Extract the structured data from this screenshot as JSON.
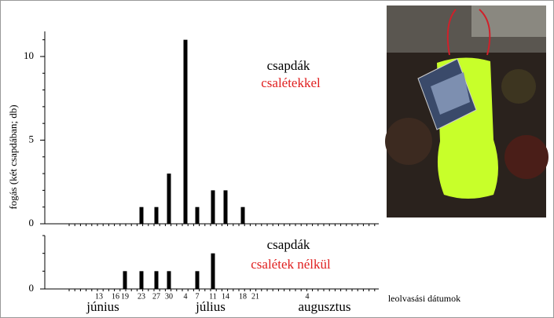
{
  "chart_data": [
    {
      "type": "bar",
      "y_label": "fogás (két csapdában; db)",
      "annotation": [
        "csapdák",
        "csalétekkel"
      ],
      "values": [
        0,
        0,
        0,
        1,
        1,
        3,
        11,
        1,
        2,
        2,
        1,
        0,
        0
      ],
      "color": "#000000",
      "ylim": [
        0,
        11.5
      ],
      "yticks": [
        0,
        5,
        10
      ]
    },
    {
      "type": "bar",
      "annotation": [
        "csapdák",
        "csalétek nélkül"
      ],
      "categories": [
        "13",
        "16",
        "19",
        "23",
        "27",
        "30",
        "4",
        "7",
        "11",
        "14",
        "18",
        "21",
        "4"
      ],
      "values": [
        0,
        0,
        1,
        1,
        1,
        1,
        0,
        1,
        2,
        0,
        0,
        0,
        0
      ],
      "color": "#000000",
      "ylim": [
        0,
        3
      ],
      "yticks": [
        0
      ],
      "months": [
        "június",
        "július",
        "augusztus"
      ],
      "x_label": "leolvasási dátumok"
    }
  ]
}
